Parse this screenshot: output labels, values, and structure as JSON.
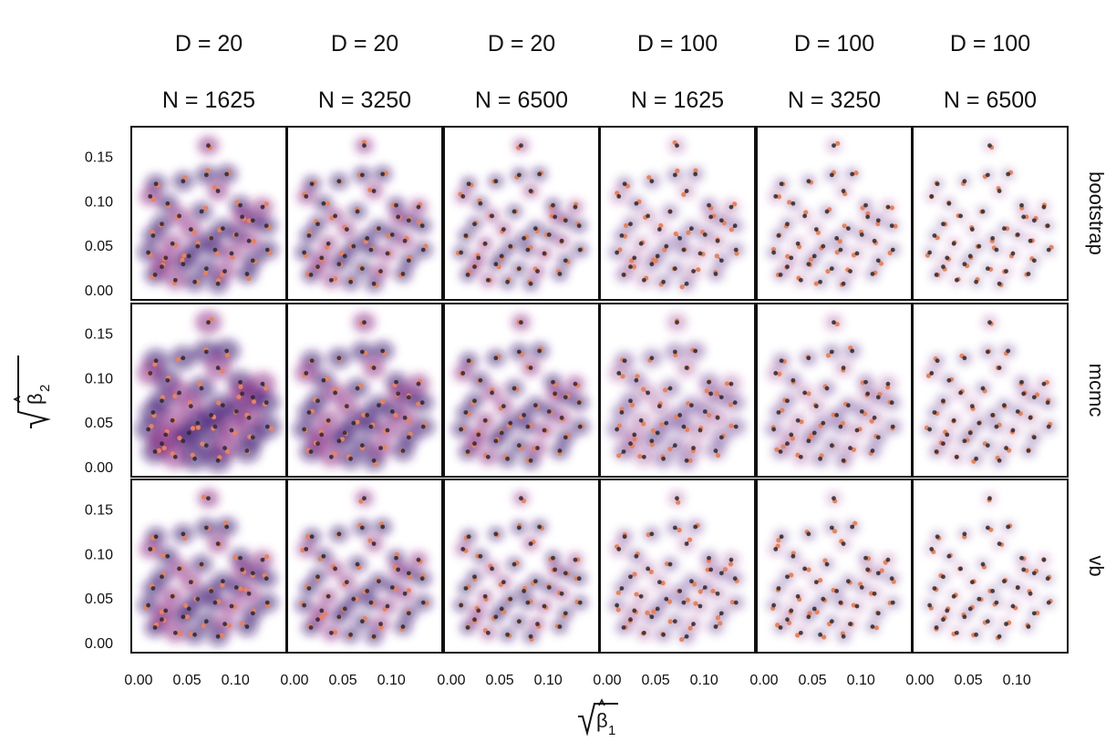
{
  "chart_data": {
    "type": "scatter",
    "layout": "faceted grid",
    "columns": [
      {
        "d_label": "D = 20",
        "n_label": "N = 1625"
      },
      {
        "d_label": "D = 20",
        "n_label": "N = 3250"
      },
      {
        "d_label": "D = 20",
        "n_label": "N = 6500"
      },
      {
        "d_label": "D = 100",
        "n_label": "N = 1625"
      },
      {
        "d_label": "D = 100",
        "n_label": "N = 3250"
      },
      {
        "d_label": "D = 100",
        "n_label": "N = 6500"
      }
    ],
    "rows": [
      "bootstrap",
      "mcmc",
      "vb"
    ],
    "xlabel": {
      "symbol": "β",
      "subscript": "1"
    },
    "ylabel": {
      "symbol": "β",
      "subscript": "2"
    },
    "xlim": [
      0.0,
      0.145
    ],
    "ylim": [
      -0.005,
      0.175
    ],
    "x_ticks": [
      0.0,
      0.05,
      0.1
    ],
    "x_tick_labels": [
      "0.00",
      "0.05",
      "0.10"
    ],
    "y_ticks": [
      0.0,
      0.05,
      0.1,
      0.15
    ],
    "y_tick_labels": [
      "0.00",
      "0.05",
      "0.10",
      "0.15"
    ],
    "grid": false,
    "colors": {
      "density_dark": "#3b0f6f",
      "density_mid": "#8c2981",
      "estimate_point": "#f08050",
      "true_point": "#2a2a2a",
      "panel_border": "#111111"
    },
    "series": [
      {
        "role": "true parameters (dark points)",
        "points": [
          [
            0.072,
            0.162
          ],
          [
            0.07,
            0.129
          ],
          [
            0.091,
            0.13
          ],
          [
            0.082,
            0.111
          ],
          [
            0.046,
            0.122
          ],
          [
            0.018,
            0.119
          ],
          [
            0.012,
            0.105
          ],
          [
            0.03,
            0.097
          ],
          [
            0.105,
            0.095
          ],
          [
            0.128,
            0.093
          ],
          [
            0.118,
            0.078
          ],
          [
            0.132,
            0.072
          ],
          [
            0.042,
            0.083
          ],
          [
            0.065,
            0.088
          ],
          [
            0.024,
            0.074
          ],
          [
            0.054,
            0.068
          ],
          [
            0.087,
            0.069
          ],
          [
            0.101,
            0.062
          ],
          [
            0.114,
            0.055
          ],
          [
            0.133,
            0.045
          ],
          [
            0.015,
            0.061
          ],
          [
            0.035,
            0.052
          ],
          [
            0.061,
            0.049
          ],
          [
            0.079,
            0.045
          ],
          [
            0.096,
            0.041
          ],
          [
            0.118,
            0.033
          ],
          [
            0.01,
            0.042
          ],
          [
            0.028,
            0.036
          ],
          [
            0.046,
            0.029
          ],
          [
            0.07,
            0.024
          ],
          [
            0.089,
            0.021
          ],
          [
            0.112,
            0.018
          ],
          [
            0.017,
            0.017
          ],
          [
            0.038,
            0.011
          ],
          [
            0.058,
            0.009
          ],
          [
            0.082,
            0.007
          ],
          [
            0.024,
            0.026
          ],
          [
            0.052,
            0.038
          ],
          [
            0.075,
            0.058
          ],
          [
            0.107,
            0.082
          ]
        ]
      }
    ]
  }
}
